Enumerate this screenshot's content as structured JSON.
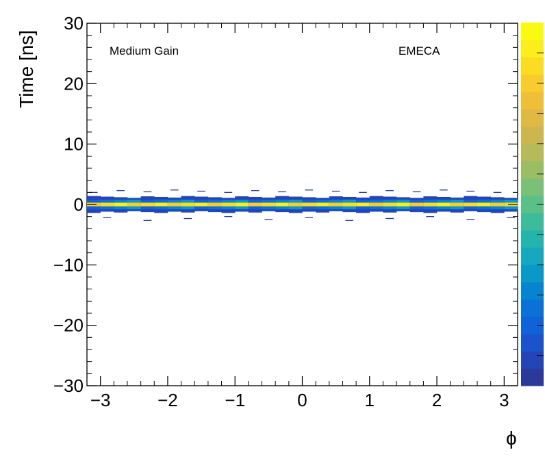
{
  "chart_data": {
    "type": "heatmap",
    "title": "",
    "xlabel": "ϕ",
    "ylabel": "Time [ns]",
    "xlim": [
      -3.2,
      3.2
    ],
    "ylim": [
      -30,
      30
    ],
    "x_ticks": [
      -3,
      -2,
      -1,
      0,
      1,
      2,
      3
    ],
    "x_tick_labels": [
      "−3",
      "−2",
      "−1",
      "0",
      "1",
      "2",
      "3"
    ],
    "y_ticks": [
      -30,
      -20,
      -10,
      0,
      10,
      20,
      30
    ],
    "y_tick_labels": [
      "−30",
      "−20",
      "−10",
      "0",
      "10",
      "20",
      "30"
    ],
    "annotations": {
      "left": "Medium Gain",
      "right": "EMECA"
    },
    "grid": false,
    "colorbar": true,
    "colormap": [
      "#2b3a9a",
      "#2345b8",
      "#1a53cc",
      "#0f62d8",
      "#0a72d6",
      "#0585d0",
      "#0a98c8",
      "#16a8bd",
      "#24b4ae",
      "#3cbc9a",
      "#5bbf88",
      "#7cbf76",
      "#9bbd66",
      "#b6ba5a",
      "#cdb650",
      "#e0b844",
      "#f0bf38",
      "#f8cc2c",
      "#fbdc22",
      "#fcee1a",
      "#fafa10"
    ],
    "band": {
      "core_time": [
        -0.3,
        0.3
      ],
      "inner_time": [
        -0.8,
        0.8
      ],
      "outer_time": [
        -1.4,
        1.4
      ],
      "phi_bin_width": 0.2
    }
  }
}
